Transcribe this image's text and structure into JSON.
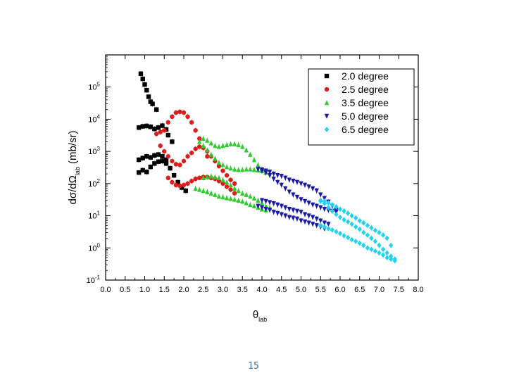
{
  "page_number": "15",
  "chart_data": {
    "type": "scatter",
    "title": "",
    "xlabel_main": "θ",
    "xlabel_sub": "lab",
    "ylabel_parts": [
      "dσ/dΩ",
      "lab",
      " (mb/sr)"
    ],
    "xlim": [
      0,
      8
    ],
    "ylim_log10": [
      -1,
      6
    ],
    "y_scale": "log",
    "grid": false,
    "legend_position": "top-right",
    "x_ticks": [
      "0.0",
      "0.5",
      "1.0",
      "1.5",
      "2.0",
      "2.5",
      "3.0",
      "3.5",
      "4.0",
      "4.5",
      "5.0",
      "5.5",
      "6.0",
      "6.5",
      "7.0",
      "7.5",
      "8.0"
    ],
    "y_ticks": [
      {
        "base": "10",
        "exp": "-1"
      },
      {
        "base": "10",
        "exp": "0"
      },
      {
        "base": "10",
        "exp": "1"
      },
      {
        "base": "10",
        "exp": "2"
      },
      {
        "base": "10",
        "exp": "3"
      },
      {
        "base": "10",
        "exp": "4"
      },
      {
        "base": "10",
        "exp": "5"
      }
    ],
    "series": [
      {
        "name": "2.0 degree",
        "color": "#000000",
        "marker": "square",
        "curves": [
          {
            "x": [
              0.9,
              0.95,
              1.0,
              1.05,
              1.1,
              1.15,
              1.2,
              1.3
            ],
            "y": [
              260000,
              180000,
              120000,
              80000,
              50000,
              35000,
              30000,
              20000
            ]
          },
          {
            "x": [
              0.85,
              0.95,
              1.05,
              1.15,
              1.25,
              1.35,
              1.45,
              1.55,
              1.6,
              1.7
            ],
            "y": [
              5500,
              6000,
              6200,
              5800,
              5000,
              5500,
              6300,
              4800,
              3200,
              2000
            ]
          },
          {
            "x": [
              0.85,
              0.95,
              1.05,
              1.15,
              1.25,
              1.35,
              1.45,
              1.55,
              1.65,
              1.75,
              1.85,
              1.95,
              2.05
            ],
            "y": [
              550,
              620,
              700,
              650,
              750,
              800,
              700,
              550,
              300,
              180,
              110,
              75,
              60
            ]
          },
          {
            "x": [
              0.85,
              0.95,
              1.05,
              1.15,
              1.25,
              1.35,
              1.45,
              1.55
            ],
            "y": [
              220,
              260,
              230,
              330,
              420,
              480,
              500,
              420
            ]
          }
        ]
      },
      {
        "name": "2.5 degree",
        "color": "#dd1c1c",
        "marker": "circle",
        "curves": [
          {
            "x": [
              1.3,
              1.4,
              1.5,
              1.6,
              1.7,
              1.8,
              1.9,
              2.0,
              2.1,
              2.2,
              2.3,
              2.4,
              2.5,
              2.6
            ],
            "y": [
              3500,
              4000,
              4500,
              8000,
              12000,
              16000,
              17000,
              16000,
              12000,
              8000,
              4500,
              2500,
              1300,
              700
            ]
          },
          {
            "x": [
              1.4,
              1.5,
              1.6,
              1.7,
              1.8,
              1.9,
              2.0,
              2.1,
              2.2,
              2.3,
              2.4,
              2.5,
              2.6,
              2.7,
              2.8,
              2.9,
              3.0,
              3.1,
              3.2,
              3.3
            ],
            "y": [
              1500,
              1000,
              700,
              500,
              400,
              380,
              500,
              700,
              900,
              1200,
              1400,
              1300,
              1000,
              700,
              500,
              350,
              250,
              180,
              130,
              100
            ]
          },
          {
            "x": [
              1.6,
              1.7,
              1.8,
              1.9,
              2.0,
              2.1,
              2.2,
              2.3,
              2.4,
              2.5,
              2.6,
              2.7,
              2.8,
              2.9,
              3.0,
              3.1,
              3.2,
              3.3
            ],
            "y": [
              150,
              110,
              90,
              85,
              90,
              100,
              120,
              140,
              150,
              160,
              160,
              150,
              140,
              120,
              100,
              80,
              65,
              50
            ]
          }
        ]
      },
      {
        "name": "3.5 degree",
        "color": "#2ecc2e",
        "marker": "triangle-up",
        "curves": [
          {
            "x": [
              2.4,
              2.5,
              2.6,
              2.7,
              2.8,
              2.9,
              3.0,
              3.1,
              3.2,
              3.3,
              3.4,
              3.5,
              3.6,
              3.7,
              3.8,
              3.9,
              4.0,
              4.1
            ],
            "y": [
              2000,
              2500,
              2200,
              1800,
              1500,
              1400,
              1500,
              1600,
              1700,
              1700,
              1600,
              1400,
              1100,
              800,
              550,
              380,
              280,
              220
            ]
          },
          {
            "x": [
              2.5,
              2.6,
              2.7,
              2.8,
              2.9,
              3.0,
              3.1,
              3.2,
              3.3,
              3.4,
              3.5,
              3.6,
              3.7,
              3.8,
              3.9,
              4.0,
              4.1
            ],
            "y": [
              1500,
              1100,
              800,
              600,
              450,
              380,
              330,
              300,
              280,
              270,
              270,
              280,
              280,
              270,
              260,
              250,
              230
            ]
          },
          {
            "x": [
              2.5,
              2.6,
              2.7,
              2.8,
              2.9,
              3.0,
              3.1,
              3.2,
              3.3,
              3.4,
              3.5,
              3.6,
              3.7,
              3.8,
              3.9,
              4.0,
              4.1,
              4.2
            ],
            "y": [
              150,
              160,
              170,
              160,
              150,
              130,
              110,
              90,
              70,
              60,
              50,
              45,
              40,
              35,
              30,
              25,
              20,
              18
            ]
          },
          {
            "x": [
              2.3,
              2.4,
              2.5,
              2.6,
              2.7,
              2.8,
              2.9,
              3.0,
              3.1,
              3.2,
              3.3,
              3.4,
              3.5,
              3.6,
              3.7,
              3.8,
              3.9,
              4.0,
              4.1
            ],
            "y": [
              70,
              65,
              60,
              55,
              50,
              45,
              40,
              38,
              36,
              34,
              32,
              30,
              28,
              25,
              22,
              20,
              18,
              16,
              15
            ]
          }
        ]
      },
      {
        "name": "5.0 degree",
        "color": "#1a1aa8",
        "marker": "triangle-down",
        "curves": [
          {
            "x": [
              3.9,
              4.0,
              4.1,
              4.2,
              4.3,
              4.4,
              4.5,
              4.6,
              4.7,
              4.8,
              4.9,
              5.0,
              5.1,
              5.2,
              5.3,
              5.4,
              5.5,
              5.6,
              5.7,
              5.8,
              5.9
            ],
            "y": [
              280,
              270,
              250,
              230,
              200,
              180,
              170,
              150,
              130,
              120,
              110,
              100,
              90,
              80,
              70,
              60,
              45,
              35,
              27,
              20,
              15
            ]
          },
          {
            "x": [
              4.0,
              4.1,
              4.2,
              4.3,
              4.4,
              4.5,
              4.6,
              4.7,
              4.8,
              4.9,
              5.0,
              5.1,
              5.2,
              5.3,
              5.4,
              5.5,
              5.6,
              5.7,
              5.8,
              5.9
            ],
            "y": [
              250,
              220,
              180,
              140,
              110,
              90,
              70,
              55,
              45,
              38,
              32,
              28,
              25,
              22,
              20,
              18,
              16,
              15,
              14,
              13
            ]
          },
          {
            "x": [
              4.0,
              4.1,
              4.2,
              4.3,
              4.4,
              4.5,
              4.6,
              4.7,
              4.8,
              4.9,
              5.0,
              5.1,
              5.2,
              5.3,
              5.4,
              5.5,
              5.6,
              5.7
            ],
            "y": [
              30,
              28,
              26,
              24,
              22,
              20,
              18,
              16,
              15,
              14,
              13,
              11,
              10,
              9,
              8,
              7,
              6,
              5.5
            ]
          },
          {
            "x": [
              3.9,
              4.0,
              4.1,
              4.2,
              4.3,
              4.4,
              4.5,
              4.6,
              4.7,
              4.8,
              4.9,
              5.0,
              5.1,
              5.2,
              5.3,
              5.4,
              5.5,
              5.6
            ],
            "y": [
              20,
              18,
              16,
              15,
              13,
              12,
              11,
              10,
              9,
              8.5,
              8,
              7,
              6.5,
              6,
              5.5,
              5,
              4.5,
              4
            ]
          }
        ]
      },
      {
        "name": "6.5 degree",
        "color": "#22d3ee",
        "marker": "diamond",
        "curves": [
          {
            "x": [
              5.5,
              5.6,
              5.7,
              5.8,
              5.9,
              6.0,
              6.1,
              6.2,
              6.3,
              6.4,
              6.5,
              6.6,
              6.7,
              6.8,
              6.9,
              7.0,
              7.1,
              7.2,
              7.3
            ],
            "y": [
              30,
              28,
              25,
              22,
              19,
              16,
              14,
              12,
              10,
              8.5,
              7,
              6,
              5,
              4.2,
              3.5,
              3,
              2.5,
              2,
              1.2
            ]
          },
          {
            "x": [
              5.5,
              5.6,
              5.7,
              5.8,
              5.9,
              6.0,
              6.1,
              6.2,
              6.3,
              6.4,
              6.5,
              6.6,
              6.7,
              6.8,
              6.9,
              7.0,
              7.1,
              7.2,
              7.3,
              7.4
            ],
            "y": [
              28,
              24,
              18,
              14,
              11,
              9,
              7.5,
              6.5,
              5.5,
              4.5,
              3.8,
              3,
              2.5,
              2,
              1.6,
              1.2,
              0.9,
              0.7,
              0.55,
              0.45
            ]
          },
          {
            "x": [
              5.5,
              5.6,
              5.7,
              5.8,
              5.9,
              6.0,
              6.1,
              6.2,
              6.3,
              6.4,
              6.5,
              6.6,
              6.7,
              6.8,
              6.9,
              7.0,
              7.1,
              7.2,
              7.3,
              7.4
            ],
            "y": [
              5,
              4.5,
              4,
              3.6,
              3.2,
              2.8,
              2.4,
              2.1,
              1.8,
              1.6,
              1.4,
              1.2,
              1.0,
              0.9,
              0.8,
              0.7,
              0.6,
              0.5,
              0.45,
              0.4
            ]
          }
        ]
      }
    ]
  }
}
